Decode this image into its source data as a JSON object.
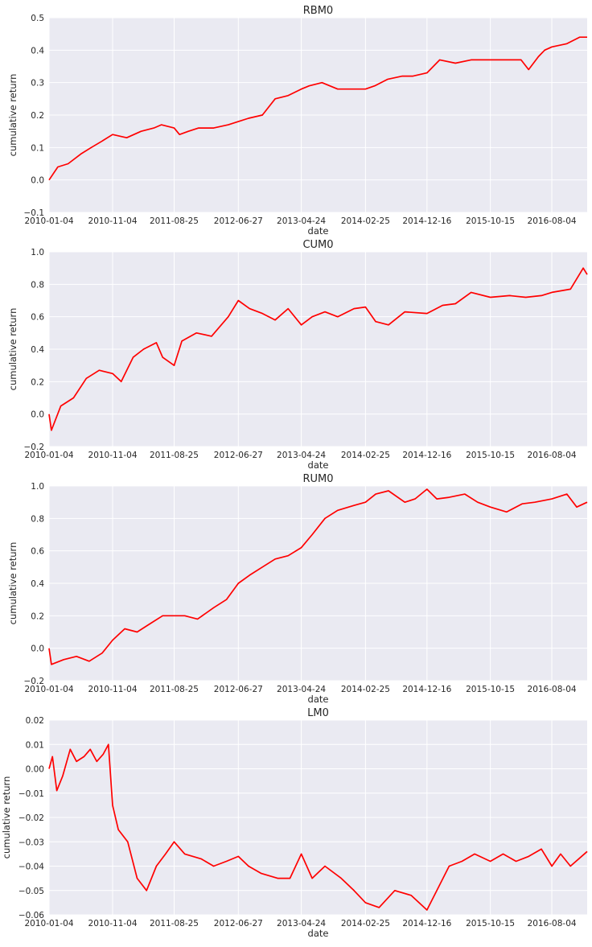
{
  "chart_data": [
    {
      "type": "line",
      "title": "RBM0",
      "xlabel": "date",
      "ylabel": "cumulative return",
      "x_ticks": [
        "2010-01-04",
        "2010-11-04",
        "2011-08-25",
        "2012-06-27",
        "2013-04-24",
        "2014-02-25",
        "2014-12-16",
        "2015-10-15",
        "2016-08-04"
      ],
      "y_ticks": [
        "−0.1",
        "0.0",
        "0.1",
        "0.2",
        "0.3",
        "0.4",
        "0.5"
      ],
      "ylim": [
        -0.1,
        0.5
      ],
      "grid": true,
      "line_color": "#ff0000",
      "background": "#eaeaf2",
      "series": [
        {
          "x": [
            "2010-01-04",
            "2010-02-15",
            "2010-04-05",
            "2010-06-05",
            "2010-07-25",
            "2010-09-15",
            "2010-11-04",
            "2011-01-10",
            "2011-03-20",
            "2011-05-20",
            "2011-06-25",
            "2011-08-25",
            "2011-09-20",
            "2011-11-01",
            "2011-12-20",
            "2012-03-01",
            "2012-05-10",
            "2012-06-27",
            "2012-08-15",
            "2012-10-20",
            "2012-12-20",
            "2013-02-20",
            "2013-04-24",
            "2013-06-01",
            "2013-08-01",
            "2013-10-15",
            "2014-01-10",
            "2014-02-25",
            "2014-04-10",
            "2014-06-10",
            "2014-08-20",
            "2014-10-10",
            "2014-12-16",
            "2015-02-15",
            "2015-05-01",
            "2015-07-15",
            "2015-09-01",
            "2015-10-15",
            "2016-01-01",
            "2016-03-10",
            "2016-04-15",
            "2016-06-01",
            "2016-07-01",
            "2016-08-04",
            "2016-10-15",
            "2016-12-15",
            "2017-01-20"
          ],
          "y": [
            0.0,
            0.04,
            0.05,
            0.08,
            0.1,
            0.12,
            0.14,
            0.13,
            0.15,
            0.16,
            0.17,
            0.16,
            0.14,
            0.15,
            0.16,
            0.16,
            0.17,
            0.18,
            0.19,
            0.2,
            0.25,
            0.26,
            0.28,
            0.29,
            0.3,
            0.28,
            0.28,
            0.28,
            0.29,
            0.31,
            0.32,
            0.32,
            0.33,
            0.37,
            0.36,
            0.37,
            0.37,
            0.37,
            0.37,
            0.37,
            0.34,
            0.38,
            0.4,
            0.41,
            0.42,
            0.44,
            0.44
          ]
        }
      ]
    },
    {
      "type": "line",
      "title": "CUM0",
      "xlabel": "date",
      "ylabel": "cumulative return",
      "x_ticks": [
        "2010-01-04",
        "2010-11-04",
        "2011-08-25",
        "2012-06-27",
        "2013-04-24",
        "2014-02-25",
        "2014-12-16",
        "2015-10-15",
        "2016-08-04"
      ],
      "y_ticks": [
        "−0.2",
        "0.0",
        "0.2",
        "0.4",
        "0.6",
        "0.8",
        "1.0"
      ],
      "ylim": [
        -0.2,
        1.0
      ],
      "grid": true,
      "line_color": "#ff0000",
      "background": "#eaeaf2",
      "series": [
        {
          "x": [
            "2010-01-04",
            "2010-01-15",
            "2010-03-01",
            "2010-05-01",
            "2010-07-01",
            "2010-09-01",
            "2010-11-04",
            "2010-12-15",
            "2011-02-10",
            "2011-04-01",
            "2011-06-01",
            "2011-07-01",
            "2011-08-25",
            "2011-10-01",
            "2011-12-10",
            "2012-02-20",
            "2012-05-10",
            "2012-06-27",
            "2012-08-20",
            "2012-10-20",
            "2012-12-20",
            "2013-02-20",
            "2013-04-24",
            "2013-06-15",
            "2013-08-15",
            "2013-10-15",
            "2014-01-01",
            "2014-02-25",
            "2014-04-15",
            "2014-06-15",
            "2014-09-01",
            "2014-12-16",
            "2015-03-01",
            "2015-05-01",
            "2015-07-15",
            "2015-10-15",
            "2016-01-15",
            "2016-04-01",
            "2016-06-15",
            "2016-08-04",
            "2016-11-01",
            "2017-01-01",
            "2017-01-20"
          ],
          "y": [
            0.0,
            -0.1,
            0.05,
            0.1,
            0.22,
            0.27,
            0.25,
            0.2,
            0.35,
            0.4,
            0.44,
            0.35,
            0.3,
            0.45,
            0.5,
            0.48,
            0.6,
            0.7,
            0.65,
            0.62,
            0.58,
            0.65,
            0.55,
            0.6,
            0.63,
            0.6,
            0.65,
            0.66,
            0.57,
            0.55,
            0.63,
            0.62,
            0.67,
            0.68,
            0.75,
            0.72,
            0.73,
            0.72,
            0.73,
            0.75,
            0.77,
            0.9,
            0.86
          ]
        }
      ]
    },
    {
      "type": "line",
      "title": "RUM0",
      "xlabel": "date",
      "ylabel": "cumulative return",
      "x_ticks": [
        "2010-01-04",
        "2010-11-04",
        "2011-08-25",
        "2012-06-27",
        "2013-04-24",
        "2014-02-25",
        "2014-12-16",
        "2015-10-15",
        "2016-08-04"
      ],
      "y_ticks": [
        "−0.2",
        "0.0",
        "0.2",
        "0.4",
        "0.6",
        "0.8",
        "1.0"
      ],
      "ylim": [
        -0.2,
        1.0
      ],
      "grid": true,
      "line_color": "#ff0000",
      "background": "#eaeaf2",
      "series": [
        {
          "x": [
            "2010-01-04",
            "2010-01-15",
            "2010-03-15",
            "2010-05-15",
            "2010-07-15",
            "2010-09-15",
            "2010-11-04",
            "2011-01-01",
            "2011-03-01",
            "2011-05-01",
            "2011-07-01",
            "2011-08-25",
            "2011-10-15",
            "2011-12-15",
            "2012-03-01",
            "2012-05-01",
            "2012-06-27",
            "2012-08-20",
            "2012-10-20",
            "2012-12-20",
            "2013-02-20",
            "2013-04-24",
            "2013-06-15",
            "2013-08-15",
            "2013-10-15",
            "2014-01-01",
            "2014-02-25",
            "2014-04-15",
            "2014-06-15",
            "2014-09-01",
            "2014-10-20",
            "2014-12-16",
            "2015-02-01",
            "2015-04-01",
            "2015-06-15",
            "2015-08-15",
            "2015-10-15",
            "2016-01-01",
            "2016-03-15",
            "2016-05-15",
            "2016-08-04",
            "2016-10-15",
            "2016-12-01",
            "2017-01-20"
          ],
          "y": [
            0.0,
            -0.1,
            -0.07,
            -0.05,
            -0.08,
            -0.03,
            0.05,
            0.12,
            0.1,
            0.15,
            0.2,
            0.2,
            0.2,
            0.18,
            0.25,
            0.3,
            0.4,
            0.45,
            0.5,
            0.55,
            0.57,
            0.62,
            0.7,
            0.8,
            0.85,
            0.88,
            0.9,
            0.95,
            0.97,
            0.9,
            0.92,
            0.98,
            0.92,
            0.93,
            0.95,
            0.9,
            0.87,
            0.84,
            0.89,
            0.9,
            0.92,
            0.95,
            0.87,
            0.9
          ]
        }
      ]
    },
    {
      "type": "line",
      "title": "LM0",
      "xlabel": "date",
      "ylabel": "cumulative return",
      "x_ticks": [
        "2010-01-04",
        "2010-11-04",
        "2011-08-25",
        "2012-06-27",
        "2013-04-24",
        "2014-02-25",
        "2014-12-16",
        "2015-10-15",
        "2016-08-04"
      ],
      "y_ticks": [
        "−0.06",
        "−0.05",
        "−0.04",
        "−0.03",
        "−0.02",
        "−0.01",
        "0.00",
        "0.01",
        "0.02"
      ],
      "ylim": [
        -0.06,
        0.02
      ],
      "grid": true,
      "line_color": "#ff0000",
      "background": "#eaeaf2",
      "series": [
        {
          "x": [
            "2010-01-04",
            "2010-01-20",
            "2010-02-10",
            "2010-03-10",
            "2010-04-15",
            "2010-05-15",
            "2010-06-20",
            "2010-07-20",
            "2010-08-20",
            "2010-09-20",
            "2010-10-15",
            "2010-11-04",
            "2010-12-01",
            "2011-01-15",
            "2011-03-01",
            "2011-04-15",
            "2011-06-01",
            "2011-07-15",
            "2011-08-25",
            "2011-10-15",
            "2012-01-01",
            "2012-03-01",
            "2012-05-01",
            "2012-06-27",
            "2012-08-15",
            "2012-10-15",
            "2013-01-01",
            "2013-03-01",
            "2013-04-24",
            "2013-06-15",
            "2013-08-15",
            "2013-11-01",
            "2014-01-01",
            "2014-02-25",
            "2014-05-01",
            "2014-07-15",
            "2014-10-01",
            "2014-12-16",
            "2015-02-01",
            "2015-04-01",
            "2015-06-01",
            "2015-08-01",
            "2015-10-15",
            "2015-12-15",
            "2016-02-15",
            "2016-04-15",
            "2016-06-15",
            "2016-08-04",
            "2016-09-15",
            "2016-11-01",
            "2017-01-20"
          ],
          "y": [
            0.0,
            0.005,
            -0.009,
            -0.003,
            0.008,
            0.003,
            0.005,
            0.008,
            0.003,
            0.006,
            0.01,
            -0.015,
            -0.025,
            -0.03,
            -0.045,
            -0.05,
            -0.04,
            -0.035,
            -0.03,
            -0.035,
            -0.037,
            -0.04,
            -0.038,
            -0.036,
            -0.04,
            -0.043,
            -0.045,
            -0.045,
            -0.035,
            -0.045,
            -0.04,
            -0.045,
            -0.05,
            -0.055,
            -0.057,
            -0.05,
            -0.052,
            -0.058,
            -0.05,
            -0.04,
            -0.038,
            -0.035,
            -0.038,
            -0.035,
            -0.038,
            -0.036,
            -0.033,
            -0.04,
            -0.035,
            -0.04,
            -0.034
          ]
        }
      ]
    }
  ]
}
